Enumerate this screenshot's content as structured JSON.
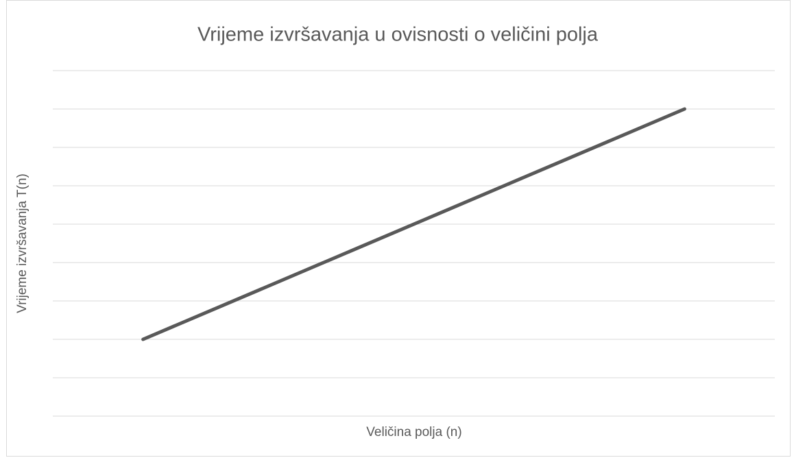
{
  "chart_data": {
    "type": "line",
    "title": "Vrijeme izvršavanja u ovisnosti o veličini polja",
    "x_label": "Veličina polja (n)",
    "y_label": "Vrijeme izvršavanja T(n)",
    "categories": [
      null,
      null,
      null,
      null
    ],
    "series": [
      {
        "name": null,
        "color": "#595959",
        "values": [
          2,
          4,
          6,
          8
        ]
      }
    ],
    "ylim": [
      0,
      9
    ],
    "yticks": [
      0,
      1,
      2,
      3,
      4,
      5,
      6,
      7,
      8,
      9
    ],
    "grid": true
  }
}
